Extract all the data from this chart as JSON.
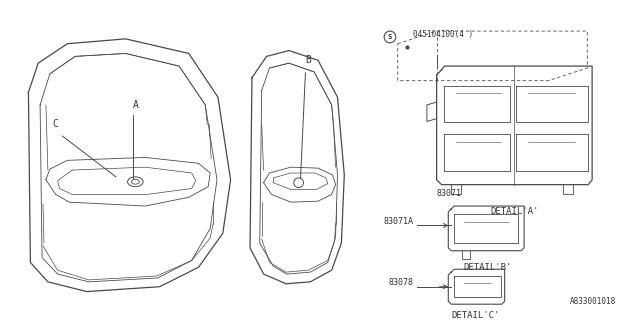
{
  "background_color": "#ffffff",
  "line_color": "#4a4a4a",
  "text_color": "#333333",
  "fig_width": 6.4,
  "fig_height": 3.2,
  "dpi": 100,
  "part_number_label": "045104100(4 )",
  "part_83071_label": "83071",
  "part_83071A_label": "83071A",
  "part_83078_label": "83078",
  "detail_A_label": "DETAIL'A'",
  "detail_B_label": "DETAIL'B'",
  "detail_C_label": "DETAIL'C'",
  "label_A": "A",
  "label_B": "B",
  "label_C": "C",
  "diagram_id": "A833001018",
  "font_size_small": 6.0,
  "font_size_detail": 6.5,
  "font_family": "monospace"
}
